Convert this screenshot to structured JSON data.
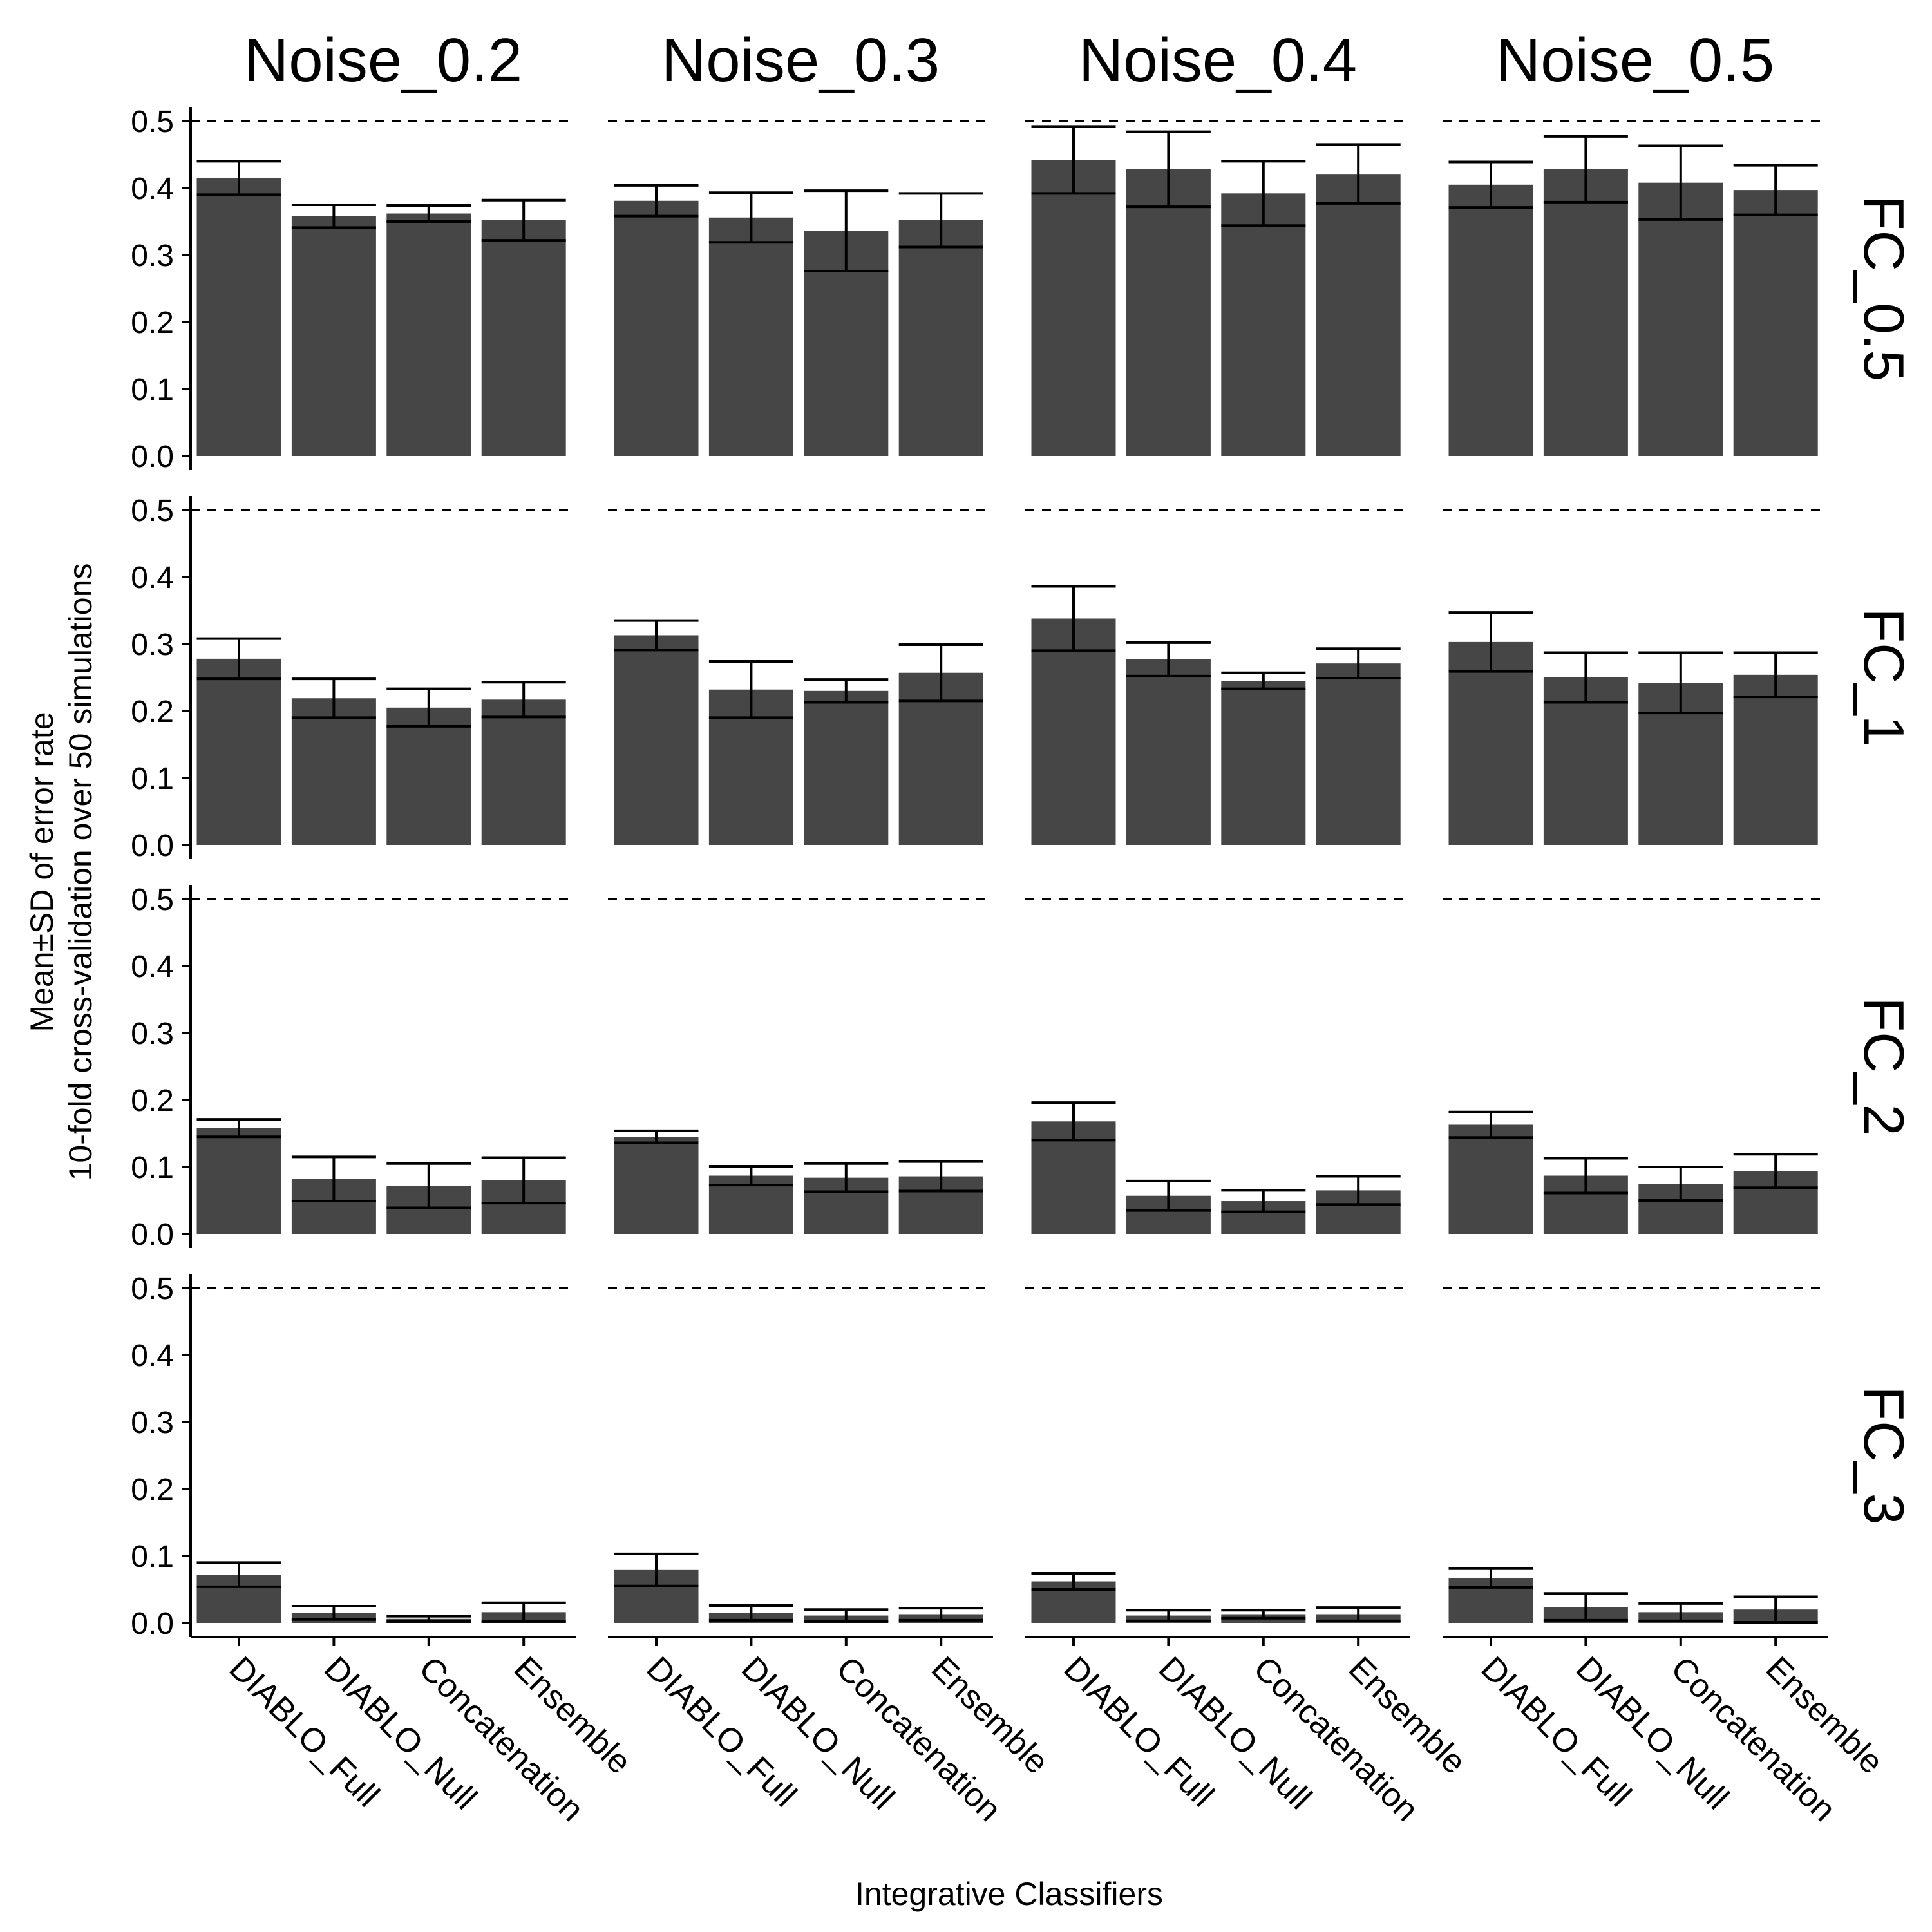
{
  "chart_data": {
    "type": "bar",
    "title": "",
    "xlabel": "Integrative Classifiers",
    "ylabel_lines": [
      "Mean±SD of error rate",
      "10-fold cross-validation over 50 simulations"
    ],
    "ylim": [
      0,
      0.5
    ],
    "yticks": [
      "0.0",
      "0.1",
      "0.2",
      "0.3",
      "0.4",
      "0.5"
    ],
    "reference_line": 0.5,
    "grid": false,
    "legend": "none",
    "bar_color": "#464646",
    "categories": [
      "DIABLO_Full",
      "DIABLO_Null",
      "Concatenation",
      "Ensemble"
    ],
    "col_facets": [
      "Noise_0.2",
      "Noise_0.3",
      "Noise_0.4",
      "Noise_0.5"
    ],
    "row_facets": [
      "FC_0.5",
      "FC_1",
      "FC_2",
      "FC_3"
    ],
    "panels": [
      [
        {
          "mean": [
            0.415,
            0.358,
            0.362,
            0.352
          ],
          "sd": [
            0.025,
            0.017,
            0.012,
            0.03
          ]
        },
        {
          "mean": [
            0.381,
            0.356,
            0.336,
            0.352
          ],
          "sd": [
            0.023,
            0.037,
            0.06,
            0.04
          ]
        },
        {
          "mean": [
            0.442,
            0.428,
            0.392,
            0.421
          ],
          "sd": [
            0.05,
            0.056,
            0.048,
            0.044
          ]
        },
        {
          "mean": [
            0.405,
            0.428,
            0.408,
            0.397
          ],
          "sd": [
            0.034,
            0.049,
            0.055,
            0.037
          ]
        }
      ],
      [
        {
          "mean": [
            0.278,
            0.219,
            0.205,
            0.217
          ],
          "sd": [
            0.03,
            0.029,
            0.028,
            0.026
          ]
        },
        {
          "mean": [
            0.313,
            0.232,
            0.23,
            0.257
          ],
          "sd": [
            0.022,
            0.042,
            0.017,
            0.042
          ]
        },
        {
          "mean": [
            0.338,
            0.277,
            0.245,
            0.271
          ],
          "sd": [
            0.048,
            0.025,
            0.012,
            0.022
          ]
        },
        {
          "mean": [
            0.303,
            0.25,
            0.242,
            0.254
          ],
          "sd": [
            0.044,
            0.037,
            0.045,
            0.033
          ]
        }
      ],
      [
        {
          "mean": [
            0.158,
            0.082,
            0.072,
            0.08
          ],
          "sd": [
            0.013,
            0.033,
            0.033,
            0.034
          ]
        },
        {
          "mean": [
            0.145,
            0.087,
            0.084,
            0.086
          ],
          "sd": [
            0.009,
            0.014,
            0.021,
            0.022
          ]
        },
        {
          "mean": [
            0.168,
            0.057,
            0.049,
            0.065
          ],
          "sd": [
            0.028,
            0.022,
            0.016,
            0.021
          ]
        },
        {
          "mean": [
            0.163,
            0.087,
            0.075,
            0.094
          ],
          "sd": [
            0.019,
            0.026,
            0.025,
            0.025
          ]
        }
      ],
      [
        {
          "mean": [
            0.072,
            0.015,
            0.006,
            0.016
          ],
          "sd": [
            0.018,
            0.01,
            0.004,
            0.014
          ]
        },
        {
          "mean": [
            0.079,
            0.015,
            0.011,
            0.013
          ],
          "sd": [
            0.024,
            0.011,
            0.009,
            0.009
          ]
        },
        {
          "mean": [
            0.062,
            0.011,
            0.013,
            0.013
          ],
          "sd": [
            0.012,
            0.008,
            0.006,
            0.01
          ]
        },
        {
          "mean": [
            0.067,
            0.024,
            0.016,
            0.02
          ],
          "sd": [
            0.014,
            0.02,
            0.013,
            0.019
          ]
        }
      ]
    ]
  }
}
